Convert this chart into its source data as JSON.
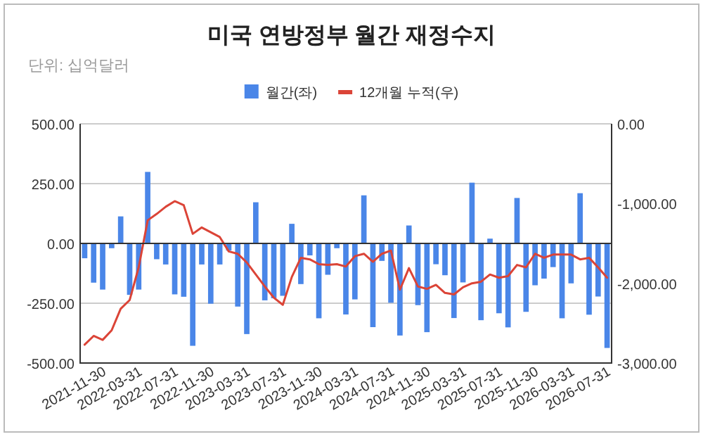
{
  "chart_data": {
    "type": "bar",
    "title": "미국 연방정부 월간 재정수지",
    "subtitle": "단위: 십억달러",
    "categories": [
      null,
      null,
      "2021-11-30",
      null,
      null,
      null,
      "2022-03-31",
      null,
      null,
      null,
      "2022-07-31",
      null,
      null,
      null,
      "2022-11-30",
      null,
      null,
      null,
      "2023-03-31",
      null,
      null,
      null,
      "2023-07-31",
      null,
      null,
      null,
      "2023-11-30",
      null,
      null,
      null,
      "2024-03-31",
      null,
      null,
      null,
      "2024-07-31",
      null,
      null,
      null,
      "2024-11-30",
      null,
      null,
      null,
      "2025-03-31",
      null,
      null,
      null,
      "2025-07-31",
      null,
      null,
      null,
      "2025-11-30",
      null,
      null,
      null,
      "2026-03-31",
      null,
      null,
      null,
      "2026-07-31"
    ],
    "series": [
      {
        "name": "월간(좌)",
        "color": "#4a86e8",
        "values": [
          -62,
          -164,
          -193,
          -20,
          113,
          -215,
          -193,
          299,
          -66,
          -88,
          -213,
          -223,
          -428,
          -88,
          -252,
          -88,
          -30,
          -264,
          -379,
          172,
          -238,
          -229,
          -219,
          82,
          -170,
          -50,
          -313,
          -131,
          -20,
          -297,
          -234,
          201,
          -350,
          -73,
          -248,
          -385,
          75,
          -258,
          -371,
          -87,
          -133,
          -312,
          -163,
          254,
          -321,
          20,
          -292,
          -351,
          190,
          -286,
          -175,
          -147,
          -99,
          -313,
          -167,
          210,
          -298,
          -222,
          -437
        ]
      },
      {
        "name": "12개월 누적(우)",
        "type": "line",
        "axis": "y2",
        "color": "#db4437",
        "values": [
          -2770,
          -2660,
          -2710,
          -2590,
          -2320,
          -2210,
          -1800,
          -1210,
          -1130,
          -1040,
          -970,
          -1020,
          -1380,
          -1300,
          -1360,
          -1420,
          -1600,
          -1630,
          -1740,
          -1890,
          -2040,
          -2180,
          -2270,
          -1920,
          -1680,
          -1700,
          -1760,
          -1770,
          -1760,
          -1790,
          -1660,
          -1630,
          -1730,
          -1630,
          -1590,
          -2080,
          -1810,
          -2040,
          -2070,
          -2020,
          -2120,
          -2140,
          -2050,
          -2000,
          -1980,
          -1890,
          -1930,
          -1910,
          -1770,
          -1800,
          -1630,
          -1680,
          -1640,
          -1640,
          -1640,
          -1700,
          -1680,
          -1800,
          -1930
        ]
      }
    ],
    "ylim": [
      -500,
      500
    ],
    "yticks": [
      {
        "value": -500,
        "label": "-500.00"
      },
      {
        "value": -250,
        "label": "-250.00"
      },
      {
        "value": 0,
        "label": "0.00"
      },
      {
        "value": 250,
        "label": "250.00"
      },
      {
        "value": 500,
        "label": "500.00"
      }
    ],
    "y2lim": [
      -3000,
      0
    ],
    "y2ticks": [
      {
        "value": -3000,
        "label": "-3,000.00"
      },
      {
        "value": -2000,
        "label": "-2,000.00"
      },
      {
        "value": -1000,
        "label": "-1,000.00"
      },
      {
        "value": 0,
        "label": "0.00"
      }
    ],
    "grid": "y",
    "legend": "top"
  }
}
